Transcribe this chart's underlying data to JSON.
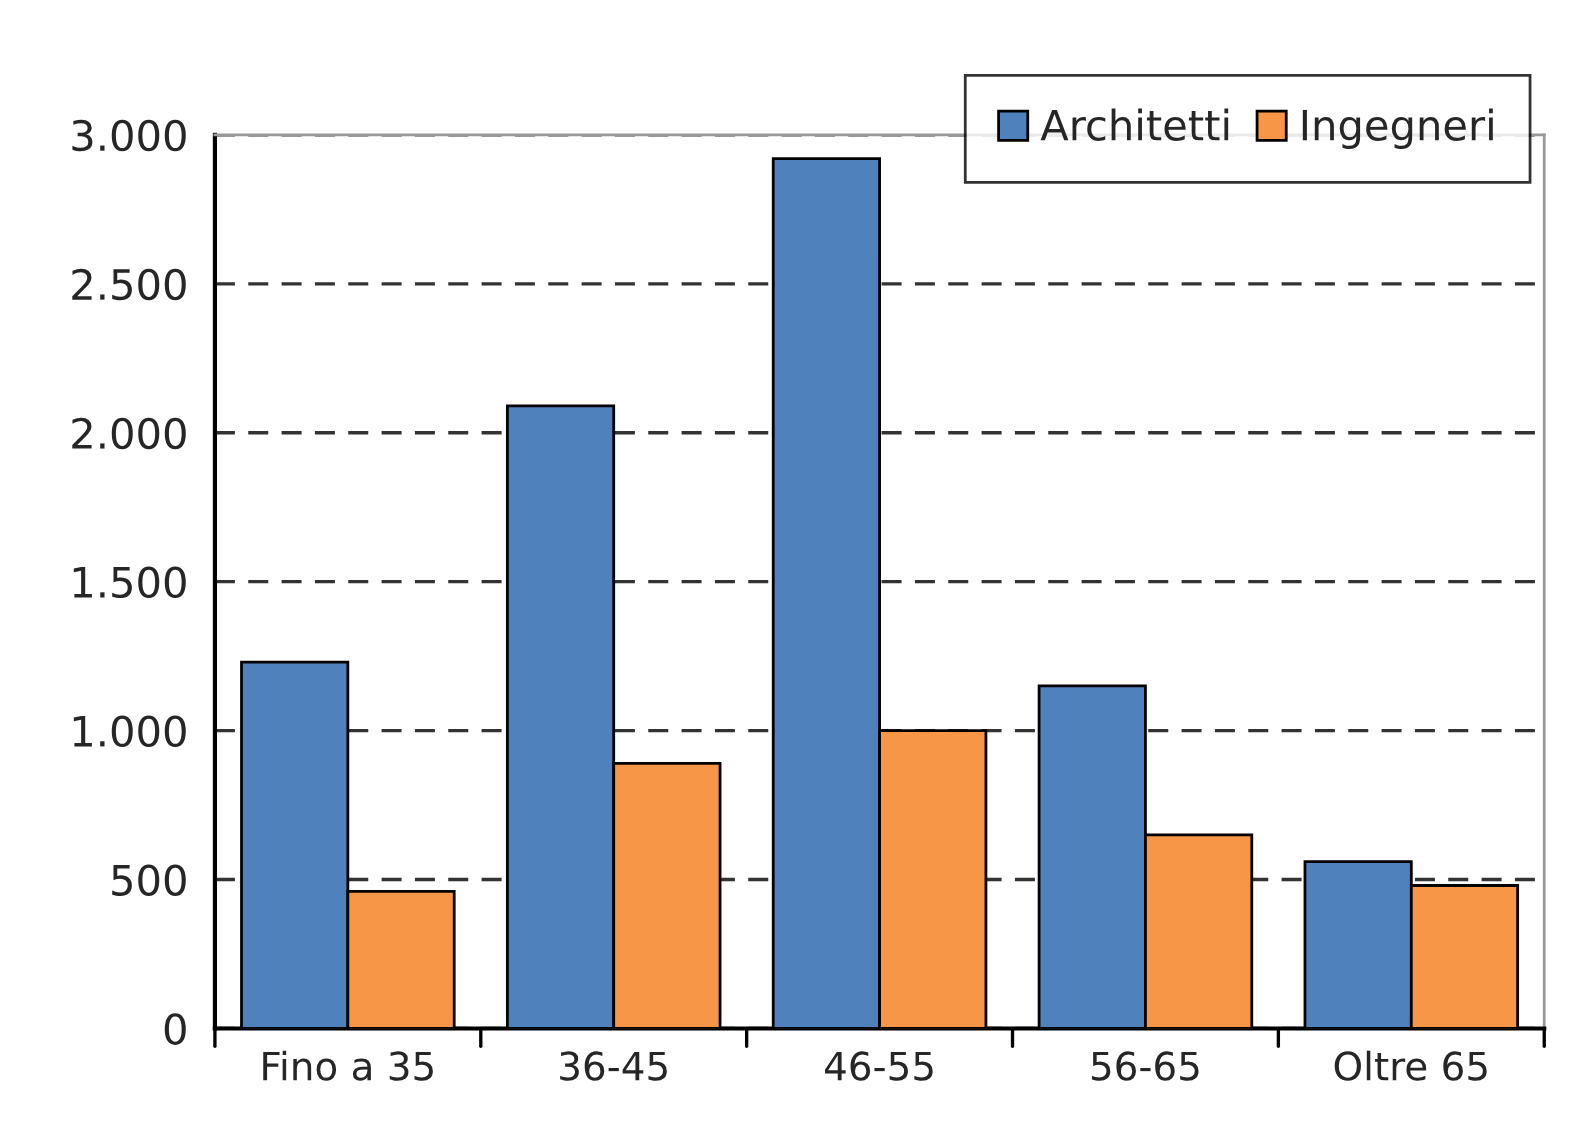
{
  "chart_data": {
    "type": "bar",
    "categories": [
      "Fino a 35",
      "36-45",
      "46-55",
      "56-65",
      "Oltre 65"
    ],
    "series": [
      {
        "name": "Architetti",
        "color": "#4f81bd",
        "values": [
          1230,
          2090,
          2920,
          1150,
          560
        ]
      },
      {
        "name": "Ingegneri",
        "color": "#f79646",
        "values": [
          460,
          890,
          1000,
          650,
          480
        ]
      }
    ],
    "ylim": [
      0,
      3000
    ],
    "yticks": [
      {
        "value": 0,
        "label": "0"
      },
      {
        "value": 500,
        "label": "500"
      },
      {
        "value": 1000,
        "label": "1.000"
      },
      {
        "value": 1500,
        "label": "1.500"
      },
      {
        "value": 2000,
        "label": "2.000"
      },
      {
        "value": 2500,
        "label": "2.500"
      },
      {
        "value": 3000,
        "label": "3.000"
      }
    ],
    "grid": "y",
    "legend": "top right"
  }
}
